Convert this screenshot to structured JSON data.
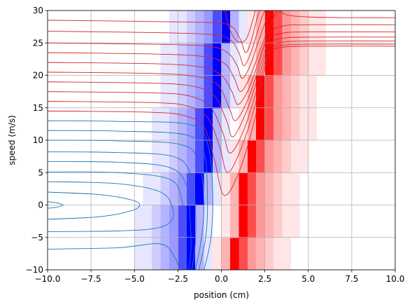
{
  "chart_data": {
    "type": "contour",
    "xlabel": "position (cm)",
    "ylabel": "speed (m/s)",
    "xlim": [
      -10,
      10
    ],
    "ylim": [
      -10,
      30
    ],
    "xticks": [
      {
        "value": -10,
        "label": "−10.0"
      },
      {
        "value": -7.5,
        "label": "−7.5"
      },
      {
        "value": -5,
        "label": "−5.0"
      },
      {
        "value": -2.5,
        "label": "−2.5"
      },
      {
        "value": 0,
        "label": "0.0"
      },
      2.5,
      {
        "value": 5,
        "label": "5.0"
      },
      7.5,
      {
        "value": 10,
        "label": "10.0"
      }
    ],
    "yticks": [
      {
        "value": -10,
        "label": "−10"
      },
      {
        "value": -5,
        "label": "−5"
      },
      0,
      5,
      10,
      15,
      20,
      25,
      30
    ],
    "grid": true,
    "heatmap": {
      "cmap": "bwr",
      "clim": [
        -1,
        1
      ],
      "xbins": [
        -6,
        -5.5,
        -5,
        -4.5,
        -4,
        -3.5,
        -3,
        -2.5,
        -2,
        -1.5,
        -1,
        -0.5,
        0,
        0.5,
        1,
        1.5,
        2,
        2.5,
        3,
        3.5,
        4,
        4.5,
        5,
        5.5,
        6
      ],
      "ybins": [
        -10,
        -5,
        0,
        5,
        10,
        15,
        20,
        25,
        30
      ],
      "values": [
        [
          0,
          0,
          -0.1,
          -0.1,
          -0.2,
          -0.3,
          -0.4,
          -0.7,
          -1,
          -0.3,
          -0.1,
          0.1,
          0.3,
          1,
          0.7,
          0.4,
          0.3,
          0.2,
          0.1,
          0.1,
          0,
          0,
          0,
          0
        ],
        [
          0,
          0,
          -0.1,
          -0.1,
          -0.2,
          -0.3,
          -0.4,
          -0.7,
          -1,
          -0.3,
          -0.1,
          0,
          0.1,
          0.3,
          1,
          0.7,
          0.4,
          0.3,
          0.2,
          0.1,
          0.1,
          0,
          0,
          0
        ],
        [
          0,
          0,
          0,
          -0.1,
          -0.1,
          -0.2,
          -0.3,
          -0.4,
          -0.7,
          -1,
          -0.3,
          -0.1,
          0.1,
          0.3,
          1,
          0.7,
          0.4,
          0.3,
          0.2,
          0.1,
          0.1,
          0,
          0,
          0
        ],
        [
          0,
          0,
          0,
          0,
          -0.1,
          -0.1,
          -0.2,
          -0.3,
          -0.4,
          -0.7,
          -1,
          -0.3,
          -0.1,
          0.1,
          0.3,
          1,
          0.7,
          0.4,
          0.3,
          0.2,
          0.1,
          0.1,
          0,
          0
        ],
        [
          0,
          0,
          0,
          0,
          -0.1,
          -0.1,
          -0.2,
          -0.3,
          -0.4,
          -0.7,
          -1,
          -0.3,
          -0.1,
          0,
          0.1,
          0.3,
          1,
          0.7,
          0.4,
          0.3,
          0.2,
          0.1,
          0.1,
          0
        ],
        [
          0,
          0,
          0,
          0,
          0,
          -0.1,
          -0.1,
          -0.2,
          -0.3,
          -0.4,
          -0.7,
          -1,
          -0.3,
          -0.1,
          0.1,
          0.3,
          1,
          0.7,
          0.4,
          0.3,
          0.2,
          0.1,
          0.1,
          0
        ],
        [
          0,
          0,
          0,
          0,
          0,
          -0.1,
          -0.1,
          -0.2,
          -0.3,
          -0.4,
          -0.7,
          -1,
          -0.3,
          -0.1,
          0,
          0.1,
          0.3,
          1,
          0.7,
          0.4,
          0.3,
          0.2,
          0.1,
          0.1
        ],
        [
          0,
          0,
          0,
          0,
          0,
          0,
          -0.1,
          -0.1,
          -0.2,
          -0.3,
          -0.4,
          -0.7,
          -1,
          -0.3,
          -0.1,
          0.1,
          0.3,
          1,
          0.7,
          0.4,
          0.3,
          0.2,
          0.1,
          0.1
        ]
      ]
    },
    "series": [
      {
        "color": "#1f77b4",
        "x": [
          -10,
          -9.5,
          -9.1,
          -9.5,
          -10
        ],
        "y": [
          0.5,
          0.35,
          0,
          -0.35,
          -0.5
        ]
      },
      {
        "color": "#1f77b4",
        "x": [
          -10,
          -7,
          -5.2,
          -4.7,
          -5.2,
          -7,
          -10
        ],
        "y": [
          2,
          1.6,
          0.8,
          0,
          -0.9,
          -1.8,
          -2.2
        ]
      },
      {
        "color": "#1f77b4",
        "x": [
          -10,
          -6,
          -3.5,
          -2.8,
          -2.9,
          -3.8,
          -6,
          -10
        ],
        "y": [
          3.6,
          3.3,
          2,
          -0.5,
          -2.5,
          -3.6,
          -4,
          -4.1
        ]
      },
      {
        "color": "#1f77b4",
        "x": [
          -10,
          -6,
          -3,
          -2.3,
          -2.1,
          -2.1,
          -2.2
        ],
        "y": [
          5.1,
          5,
          4,
          1,
          -3,
          -7,
          -10
        ]
      },
      {
        "color": "#1f77b4",
        "x": [
          -10,
          -6,
          -3.5,
          -2.7,
          -2.4
        ],
        "y": [
          -6.8,
          -6.6,
          -6,
          -8,
          -10
        ]
      },
      {
        "color": "#1f77b4",
        "x": [
          -10,
          -6,
          -3,
          -2,
          -1.8,
          -1.75,
          -1.9
        ],
        "y": [
          6.7,
          6.6,
          5.8,
          3,
          -2,
          -7,
          -10
        ]
      },
      {
        "color": "#1f77b4",
        "x": [
          -10,
          -6,
          -2.8,
          -1.8,
          -1.5,
          -1.5,
          -1.7
        ],
        "y": [
          8.2,
          8.1,
          7.5,
          5,
          0,
          -6,
          -10
        ]
      },
      {
        "color": "#1f77b4",
        "x": [
          -10,
          -6,
          -2.3,
          -1.3,
          -1,
          -1.2,
          -1.5
        ],
        "y": [
          10,
          9.9,
          9.3,
          6.5,
          0,
          -6,
          -10
        ]
      },
      {
        "color": "#1f77b4",
        "x": [
          -10,
          -6,
          -2,
          -1,
          -0.8,
          -0.9,
          -1.3
        ],
        "y": [
          11.5,
          11.4,
          10.8,
          8,
          1,
          -5,
          -10
        ]
      },
      {
        "color": "#1f77b4",
        "x": [
          -10,
          -6,
          -1.8,
          -0.8,
          -0.5,
          -0.6,
          -1
        ],
        "y": [
          13,
          12.9,
          12.4,
          9.5,
          2,
          -5,
          -10
        ]
      },
      {
        "color": "#d62728",
        "x": [
          -10,
          -4,
          -2,
          -1,
          -0.4,
          0.15,
          1,
          1.9,
          2.4,
          2.8,
          3.5,
          5,
          10
        ],
        "y": [
          14.5,
          14.3,
          13.7,
          12,
          7,
          1.5,
          5,
          13,
          20,
          23.5,
          24.3,
          24.5,
          24.5
        ]
      },
      {
        "color": "#d62728",
        "x": [
          -10,
          -4,
          -2,
          -0.8,
          -0.1,
          0.35,
          1.1,
          1.9,
          2.35,
          2.75,
          3.5,
          5,
          10
        ],
        "y": [
          16,
          15.8,
          15.3,
          13.5,
          9,
          5,
          8.5,
          15,
          20.5,
          23.8,
          24.6,
          24.8,
          24.8
        ]
      },
      {
        "color": "#d62728",
        "x": [
          -10,
          -4,
          -1.8,
          -0.6,
          0.1,
          0.5,
          1.2,
          1.9,
          2.3,
          2.7,
          3.5,
          5,
          10
        ],
        "y": [
          17.5,
          17.3,
          16.8,
          15,
          11,
          8,
          11,
          16.5,
          21,
          24.2,
          25.1,
          25.3,
          25.3
        ]
      },
      {
        "color": "#d62728",
        "x": [
          -10,
          -4,
          -1.6,
          -0.4,
          0.3,
          0.65,
          1.3,
          1.9,
          2.3,
          2.7,
          3.5,
          5,
          10
        ],
        "y": [
          19,
          18.8,
          18.3,
          16.8,
          13,
          10.5,
          13.5,
          18,
          22,
          24.8,
          25.7,
          25.9,
          25.9
        ]
      },
      {
        "color": "#d62728",
        "x": [
          -10,
          -4,
          -1.4,
          -0.2,
          0.45,
          0.8,
          1.4,
          1.95,
          2.3,
          2.7,
          3.5,
          5,
          10
        ],
        "y": [
          20.5,
          20.3,
          19.8,
          18.5,
          15,
          13,
          15.5,
          19.5,
          23,
          25.6,
          26.5,
          26.7,
          26.7
        ]
      },
      {
        "color": "#d62728",
        "x": [
          -10,
          -4,
          -1.2,
          0,
          0.6,
          0.95,
          1.5,
          2,
          2.35,
          2.75,
          3.5,
          5,
          10
        ],
        "y": [
          22,
          21.8,
          21.3,
          20,
          17.5,
          15.5,
          17.5,
          21,
          24,
          26.5,
          27.6,
          27.8,
          27.8
        ]
      },
      {
        "color": "#d62728",
        "x": [
          -10,
          -4,
          -1,
          0.2,
          0.75,
          1.1,
          1.6,
          2.1,
          2.6,
          3.2
        ],
        "y": [
          23.5,
          23.3,
          22.9,
          21.8,
          19.5,
          17.5,
          19.5,
          23,
          26.5,
          30
        ]
      },
      {
        "color": "#d62728",
        "x": [
          -10,
          -4,
          -0.8,
          0.35,
          0.9,
          1.2,
          1.65,
          2.1,
          2.5,
          2.8
        ],
        "y": [
          25,
          24.8,
          24.5,
          23.5,
          21.5,
          19.5,
          21.5,
          25,
          28,
          30
        ]
      },
      {
        "color": "#d62728",
        "x": [
          -10,
          -4,
          -0.6,
          0.5,
          1,
          1.3,
          1.7,
          2.05,
          2.3,
          2.5
        ],
        "y": [
          26.8,
          26.6,
          26.3,
          25.5,
          23.5,
          21.5,
          23.5,
          26.5,
          28.7,
          30
        ]
      },
      {
        "color": "#d62728",
        "x": [
          -10,
          -4,
          -0.4,
          0.6,
          1.1,
          1.4,
          1.7,
          1.95,
          2.1,
          2.2
        ],
        "y": [
          28.5,
          28.3,
          28.1,
          27.5,
          25.5,
          23.5,
          25.2,
          27.7,
          29.2,
          30
        ]
      },
      {
        "color": "#d62728",
        "x": [
          0.2,
          0.5,
          0.9,
          1.4,
          1.75,
          1.95
        ],
        "y": [
          30,
          27,
          25.3,
          25.5,
          28,
          30
        ]
      },
      {
        "color": "#d62728",
        "x": [
          3.3,
          3.8,
          5,
          7,
          10
        ],
        "y": [
          30,
          29.3,
          29,
          28.9,
          28.9
        ]
      }
    ]
  }
}
